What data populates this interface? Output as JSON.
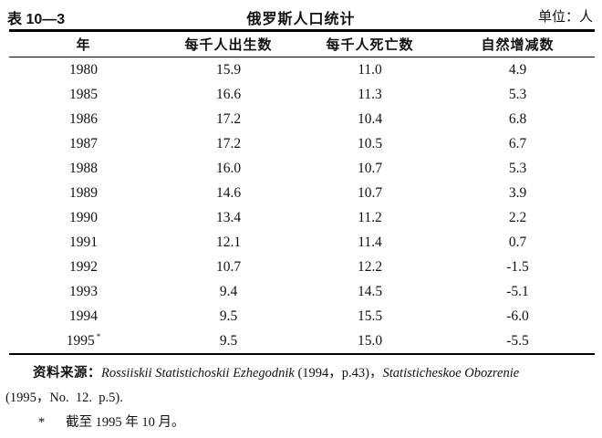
{
  "header": {
    "table_number": "表 10—3",
    "title": "俄罗斯人口统计",
    "unit": "单位：人"
  },
  "table": {
    "columns": [
      "年",
      "每千人出生数",
      "每千人死亡数",
      "自然增减数"
    ],
    "rows": [
      {
        "year": "1980",
        "mark": "",
        "births": "15.9",
        "deaths": "11.0",
        "natural": "4.9"
      },
      {
        "year": "1985",
        "mark": "",
        "births": "16.6",
        "deaths": "11.3",
        "natural": "5.3"
      },
      {
        "year": "1986",
        "mark": "",
        "births": "17.2",
        "deaths": "10.4",
        "natural": "6.8"
      },
      {
        "year": "1987",
        "mark": "",
        "births": "17.2",
        "deaths": "10.5",
        "natural": "6.7"
      },
      {
        "year": "1988",
        "mark": "",
        "births": "16.0",
        "deaths": "10.7",
        "natural": "5.3"
      },
      {
        "year": "1989",
        "mark": "",
        "births": "14.6",
        "deaths": "10.7",
        "natural": "3.9"
      },
      {
        "year": "1990",
        "mark": "",
        "births": "13.4",
        "deaths": "11.2",
        "natural": "2.2"
      },
      {
        "year": "1991",
        "mark": "",
        "births": "12.1",
        "deaths": "11.4",
        "natural": "0.7"
      },
      {
        "year": "1992",
        "mark": "",
        "births": "10.7",
        "deaths": "12.2",
        "natural": "-1.5"
      },
      {
        "year": "1993",
        "mark": "",
        "births": "9.4",
        "deaths": "14.5",
        "natural": "-5.1"
      },
      {
        "year": "1994",
        "mark": "",
        "births": "9.5",
        "deaths": "15.5",
        "natural": "-6.0"
      },
      {
        "year": "1995",
        "mark": "*",
        "births": "9.5",
        "deaths": "15.0",
        "natural": "-5.5"
      }
    ]
  },
  "chart_data": {
    "type": "table",
    "title": "俄罗斯人口统计",
    "unit": "人",
    "columns": [
      "年",
      "每千人出生数",
      "每千人死亡数",
      "自然增减数"
    ],
    "years": [
      1980,
      1985,
      1986,
      1987,
      1988,
      1989,
      1990,
      1991,
      1992,
      1993,
      1994,
      1995
    ],
    "series": [
      {
        "name": "每千人出生数",
        "values": [
          15.9,
          16.6,
          17.2,
          17.2,
          16.0,
          14.6,
          13.4,
          12.1,
          10.7,
          9.4,
          9.5,
          9.5
        ]
      },
      {
        "name": "每千人死亡数",
        "values": [
          11.0,
          11.3,
          10.4,
          10.5,
          10.7,
          10.7,
          11.2,
          11.4,
          12.2,
          14.5,
          15.5,
          15.0
        ]
      },
      {
        "name": "自然增减数",
        "values": [
          4.9,
          5.3,
          6.8,
          6.7,
          5.3,
          3.9,
          2.2,
          0.7,
          -1.5,
          -5.1,
          -6.0,
          -5.5
        ]
      }
    ]
  },
  "footer": {
    "source_label": "资料来源：",
    "source_italic_1": "Rossiiskii Statistichoskii Ezhegodnik",
    "source_plain_1": " (1994，p.43)，",
    "source_italic_2": "Statisticheskoe Obozrenie",
    "source_line2": "(1995，No.  12.  p.5).",
    "note_mark": "*",
    "note_text": "截至 1995 年 10 月。"
  }
}
